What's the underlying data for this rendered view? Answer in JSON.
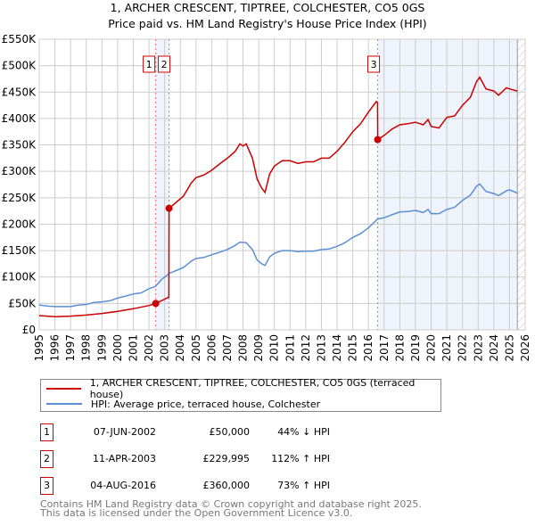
{
  "title_line1": "1, ARCHER CRESCENT, TIPTREE, COLCHESTER, CO5 0GS",
  "title_line2": "Price paid vs. HM Land Registry's House Price Index (HPI)",
  "chart_data": {
    "type": "line",
    "xlim": [
      1995,
      2026
    ],
    "ylim": [
      0,
      550000
    ],
    "y_ticks": [
      0,
      50000,
      100000,
      150000,
      200000,
      250000,
      300000,
      350000,
      400000,
      450000,
      500000,
      550000
    ],
    "y_tick_labels": [
      "£0",
      "£50K",
      "£100K",
      "£150K",
      "£200K",
      "£250K",
      "£300K",
      "£350K",
      "£400K",
      "£450K",
      "£500K",
      "£550K"
    ],
    "x_tick_labels": [
      "1995",
      "1996",
      "1997",
      "1998",
      "1999",
      "2000",
      "2001",
      "2002",
      "2003",
      "2004",
      "2005",
      "2006",
      "2007",
      "2008",
      "2009",
      "2010",
      "2011",
      "2012",
      "2013",
      "2014",
      "2015",
      "2016",
      "2017",
      "2018",
      "2019",
      "2020",
      "2021",
      "2022",
      "2023",
      "2024",
      "2025",
      "2026"
    ],
    "grid": true,
    "colors": {
      "property": "#cc0000",
      "hpi": "#5b8fd4",
      "shade": "#eef3fc",
      "marker_line": "#ff6666"
    },
    "shaded_ranges": [
      [
        2002.43,
        2003.28
      ],
      [
        2016.59,
        2025.5
      ]
    ],
    "forecast_hatch_from": 2025.5,
    "series": [
      {
        "name": "1, ARCHER CRESCENT, TIPTREE, COLCHESTER, CO5 0GS (terraced house)",
        "unit": "£K",
        "x": [
          1995,
          1996,
          1997,
          1998,
          1999,
          2000,
          2001,
          2002,
          2002.43,
          2003.27,
          2003.28,
          2003.8,
          2004.2,
          2004.7,
          2005,
          2005.5,
          2006,
          2006.5,
          2007,
          2007.5,
          2007.8,
          2008,
          2008.2,
          2008.6,
          2008.9,
          2009.2,
          2009.4,
          2009.7,
          2010,
          2010.5,
          2011,
          2011.5,
          2012,
          2012.5,
          2013,
          2013.5,
          2014,
          2014.5,
          2015,
          2015.5,
          2016,
          2016.5,
          2016.58,
          2016.59,
          2017,
          2017.5,
          2018,
          2018.5,
          2019,
          2019.5,
          2019.8,
          2020,
          2020.5,
          2021,
          2021.5,
          2022,
          2022.5,
          2022.9,
          2023.1,
          2023.5,
          2024,
          2024.3,
          2024.8,
          2025,
          2025.5
        ],
        "y": [
          27,
          25,
          26,
          28,
          31,
          35,
          40,
          46,
          50,
          62,
          230,
          243,
          253,
          278,
          288,
          293,
          302,
          314,
          325,
          338,
          352,
          348,
          352,
          325,
          285,
          268,
          260,
          295,
          310,
          320,
          320,
          315,
          318,
          318,
          325,
          325,
          338,
          355,
          375,
          390,
          412,
          432,
          430,
          360,
          368,
          380,
          388,
          390,
          393,
          388,
          398,
          385,
          382,
          402,
          405,
          425,
          440,
          470,
          478,
          456,
          452,
          444,
          458,
          456,
          452
        ]
      },
      {
        "name": "HPI: Average price, terraced house, Colchester",
        "unit": "£K",
        "x": [
          1995,
          1995.5,
          1996,
          1997,
          1997.5,
          1998,
          1998.5,
          1999,
          1999.5,
          2000,
          2000.5,
          2001,
          2001.5,
          2002,
          2002.4,
          2002.8,
          2003.3,
          2003.8,
          2004.2,
          2004.7,
          2005,
          2005.5,
          2006,
          2006.5,
          2007,
          2007.5,
          2007.8,
          2008.2,
          2008.6,
          2008.9,
          2009.2,
          2009.4,
          2009.7,
          2010,
          2010.5,
          2011,
          2011.5,
          2012,
          2012.5,
          2013,
          2013.5,
          2014,
          2014.5,
          2015,
          2015.5,
          2016,
          2016.6,
          2017,
          2017.5,
          2018,
          2018.5,
          2019,
          2019.5,
          2019.8,
          2020,
          2020.5,
          2021,
          2021.5,
          2022,
          2022.5,
          2022.9,
          2023.1,
          2023.5,
          2024,
          2024.3,
          2024.8,
          2025,
          2025.5
        ],
        "y": [
          47,
          45,
          44,
          44,
          47,
          48,
          52,
          53,
          55,
          60,
          64,
          68,
          70,
          78,
          82,
          95,
          107,
          113,
          118,
          130,
          135,
          137,
          142,
          147,
          152,
          160,
          166,
          165,
          152,
          132,
          125,
          122,
          138,
          145,
          150,
          150,
          148,
          149,
          149,
          152,
          153,
          158,
          165,
          175,
          182,
          193,
          210,
          212,
          218,
          223,
          224,
          226,
          222,
          228,
          220,
          220,
          228,
          232,
          245,
          255,
          272,
          276,
          262,
          258,
          254,
          263,
          265,
          259
        ]
      }
    ],
    "sales": [
      {
        "label": "1",
        "x": 2002.43,
        "y": 50
      },
      {
        "label": "2",
        "x": 2003.28,
        "y": 229.995
      },
      {
        "label": "3",
        "x": 2016.59,
        "y": 360
      }
    ]
  },
  "legend": {
    "property": "1, ARCHER CRESCENT, TIPTREE, COLCHESTER, CO5 0GS (terraced house)",
    "hpi": "HPI: Average price, terraced house, Colchester"
  },
  "transactions": [
    {
      "num": "1",
      "date": "07-JUN-2002",
      "price": "£50,000",
      "hpi": "44% ↓ HPI"
    },
    {
      "num": "2",
      "date": "11-APR-2003",
      "price": "£229,995",
      "hpi": "112% ↑ HPI"
    },
    {
      "num": "3",
      "date": "04-AUG-2016",
      "price": "£360,000",
      "hpi": "73% ↑ HPI"
    }
  ],
  "footer_line1": "Contains HM Land Registry data © Crown copyright and database right 2025.",
  "footer_line2": "This data is licensed under the Open Government Licence v3.0."
}
